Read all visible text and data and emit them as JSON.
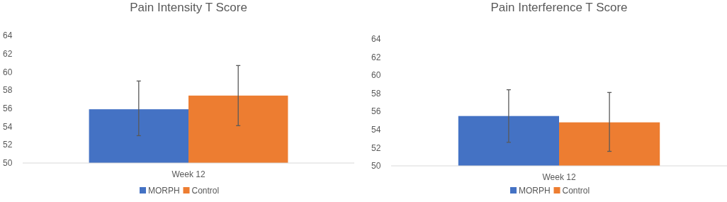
{
  "chart_data": [
    {
      "type": "bar",
      "title": "Pain Intensity T Score",
      "categories": [
        "Week 12"
      ],
      "ylim": [
        50,
        64
      ],
      "yticks": [
        50,
        52,
        54,
        56,
        58,
        60,
        62,
        64
      ],
      "grid": false,
      "legend": "bottom",
      "series": [
        {
          "name": "MORPH",
          "color": "#4472c4",
          "values": [
            55.9
          ],
          "errors": [
            [
              53.0,
              59.0
            ]
          ]
        },
        {
          "name": "Control",
          "color": "#ed7d31",
          "values": [
            57.4
          ],
          "errors": [
            [
              54.1,
              60.7
            ]
          ]
        }
      ]
    },
    {
      "type": "bar",
      "title": "Pain Interference T Score",
      "categories": [
        "Week 12"
      ],
      "ylim": [
        50,
        64
      ],
      "yticks": [
        50,
        52,
        54,
        56,
        58,
        60,
        62,
        64
      ],
      "grid": false,
      "legend": "bottom",
      "series": [
        {
          "name": "MORPH",
          "color": "#4472c4",
          "values": [
            55.5
          ],
          "errors": [
            [
              52.6,
              58.4
            ]
          ]
        },
        {
          "name": "Control",
          "color": "#ed7d31",
          "values": [
            54.8
          ],
          "errors": [
            [
              51.6,
              58.1
            ]
          ]
        }
      ]
    }
  ]
}
